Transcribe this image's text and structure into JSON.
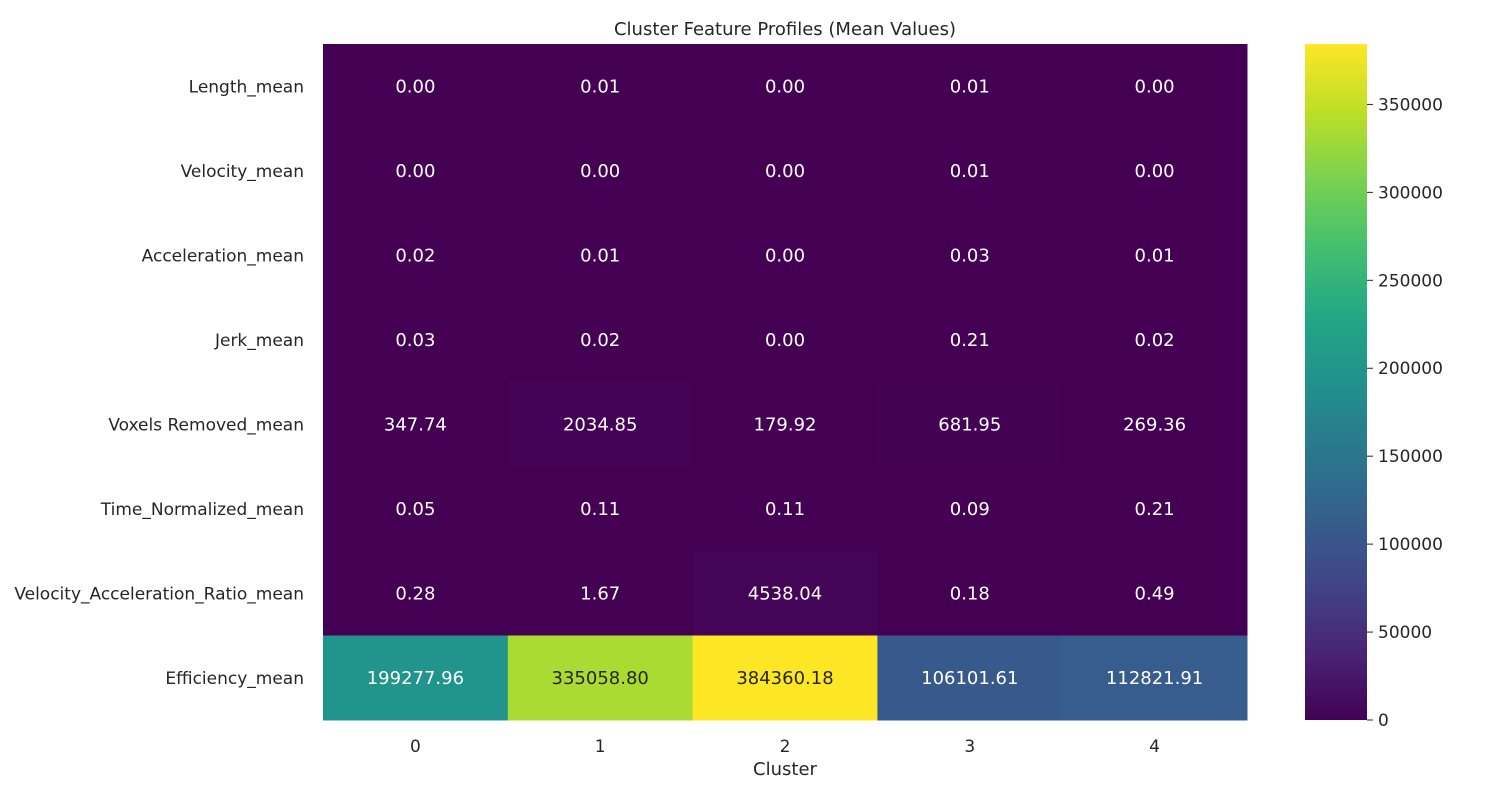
{
  "chart_data": {
    "type": "heatmap",
    "title": "Cluster Feature Profiles (Mean Values)",
    "xlabel": "Cluster",
    "ylabel": "",
    "colormap": "viridis",
    "x_categories": [
      "0",
      "1",
      "2",
      "3",
      "4"
    ],
    "y_categories": [
      "Length_mean",
      "Velocity_mean",
      "Acceleration_mean",
      "Jerk_mean",
      "Voxels Removed_mean",
      "Time_Normalized_mean",
      "Velocity_Acceleration_Ratio_mean",
      "Efficiency_mean"
    ],
    "values": [
      [
        0.0,
        0.01,
        0.0,
        0.01,
        0.0
      ],
      [
        0.0,
        0.0,
        0.0,
        0.01,
        0.0
      ],
      [
        0.02,
        0.01,
        0.0,
        0.03,
        0.01
      ],
      [
        0.03,
        0.02,
        0.0,
        0.21,
        0.02
      ],
      [
        347.74,
        2034.85,
        179.92,
        681.95,
        269.36
      ],
      [
        0.05,
        0.11,
        0.11,
        0.09,
        0.21
      ],
      [
        0.28,
        1.67,
        4538.04,
        0.18,
        0.49
      ],
      [
        199277.96,
        335058.8,
        384360.18,
        106101.61,
        112821.91
      ]
    ],
    "cell_labels": [
      [
        "0.00",
        "0.01",
        "0.00",
        "0.01",
        "0.00"
      ],
      [
        "0.00",
        "0.00",
        "0.00",
        "0.01",
        "0.00"
      ],
      [
        "0.02",
        "0.01",
        "0.00",
        "0.03",
        "0.01"
      ],
      [
        "0.03",
        "0.02",
        "0.00",
        "0.21",
        "0.02"
      ],
      [
        "347.74",
        "2034.85",
        "179.92",
        "681.95",
        "269.36"
      ],
      [
        "0.05",
        "0.11",
        "0.11",
        "0.09",
        "0.21"
      ],
      [
        "0.28",
        "1.67",
        "4538.04",
        "0.18",
        "0.49"
      ],
      [
        "199277.96",
        "335058.80",
        "384360.18",
        "106101.61",
        "112821.91"
      ]
    ],
    "colorbar": {
      "vmin": 0,
      "vmax": 384360.18,
      "ticks": [
        0,
        50000,
        100000,
        150000,
        200000,
        250000,
        300000,
        350000
      ],
      "tick_labels": [
        "0",
        "50000",
        "100000",
        "150000",
        "200000",
        "250000",
        "300000",
        "350000"
      ]
    },
    "grid": false
  }
}
